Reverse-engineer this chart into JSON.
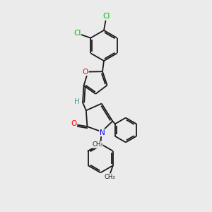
{
  "background_color": "#ebebeb",
  "bond_color": "#1a1a1a",
  "atom_colors": {
    "O": "#ff0000",
    "N": "#0000ee",
    "Cl": "#00bb00",
    "C": "#1a1a1a",
    "H": "#4a9a9a"
  },
  "figsize": [
    3.0,
    3.0
  ],
  "dpi": 100,
  "lw": 1.3
}
